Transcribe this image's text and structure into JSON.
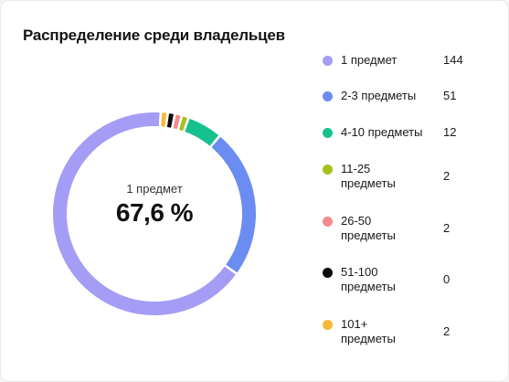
{
  "title": "Распределение среди владельцев",
  "center": {
    "label": "1 предмет",
    "value": "67,6 %"
  },
  "chart_data": {
    "type": "pie",
    "variant": "donut",
    "title": "Распределение среди владельцев",
    "categories": [
      "1 предмет",
      "2-3 предметы",
      "4-10 предметы",
      "11-25 предметы",
      "26-50 предметы",
      "51-100 предметы",
      "101+ предметы"
    ],
    "values": [
      144,
      51,
      12,
      2,
      2,
      0,
      2
    ],
    "colors": [
      "#a59cf5",
      "#6b8cf0",
      "#16c18d",
      "#a4c21e",
      "#f58a8e",
      "#0a0a0a",
      "#f7b93a"
    ],
    "legend": "right",
    "highlight": {
      "label": "1 предмет",
      "percent": "67,6 %"
    }
  }
}
